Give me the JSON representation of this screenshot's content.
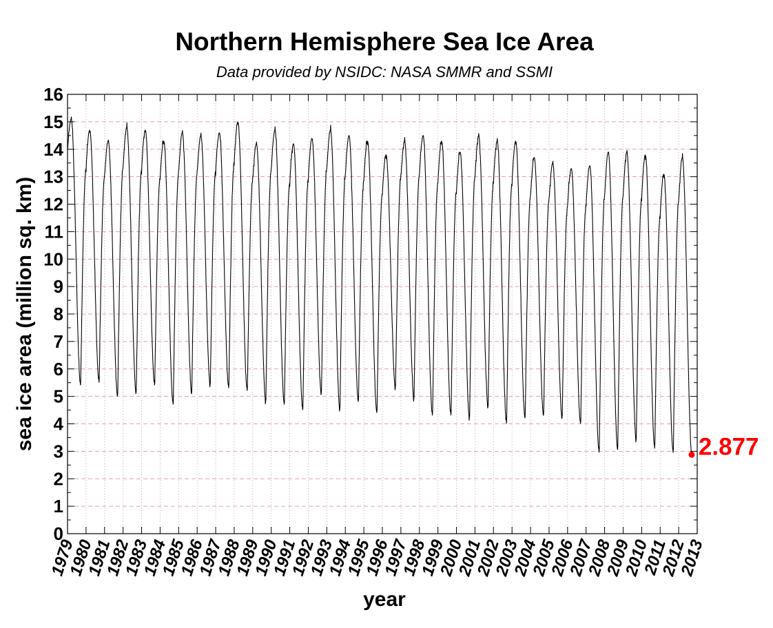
{
  "chart_data": {
    "type": "line",
    "title": "Northern Hemisphere Sea Ice Area",
    "subtitle": "Data provided by NSIDC: NASA SMMR and SSMI",
    "xlabel": "year",
    "ylabel": "sea ice area (million sq. km)",
    "xlim": [
      1979,
      2013
    ],
    "ylim": [
      0,
      16
    ],
    "x_ticks": [
      "1979",
      "1980",
      "1981",
      "1982",
      "1983",
      "1984",
      "1985",
      "1986",
      "1987",
      "1988",
      "1989",
      "1990",
      "1991",
      "1992",
      "1993",
      "1994",
      "1995",
      "1996",
      "1997",
      "1998",
      "1999",
      "2000",
      "2001",
      "2002",
      "2003",
      "2004",
      "2005",
      "2006",
      "2007",
      "2008",
      "2009",
      "2010",
      "2011",
      "2012",
      "2013"
    ],
    "y_ticks": [
      "0",
      "1",
      "2",
      "3",
      "4",
      "5",
      "6",
      "7",
      "8",
      "9",
      "10",
      "11",
      "12",
      "13",
      "14",
      "15",
      "16"
    ],
    "grid": true,
    "grid_color": "#cc8888",
    "line_color": "#000000",
    "annotation_color": "#ff0000",
    "series": [
      {
        "annual_cycles": [
          {
            "year": 1979,
            "max": 15.1,
            "min": 5.4
          },
          {
            "year": 1980,
            "max": 14.7,
            "min": 5.5
          },
          {
            "year": 1981,
            "max": 14.3,
            "min": 5.0
          },
          {
            "year": 1982,
            "max": 14.8,
            "min": 5.1
          },
          {
            "year": 1983,
            "max": 14.7,
            "min": 5.4
          },
          {
            "year": 1984,
            "max": 14.3,
            "min": 4.7
          },
          {
            "year": 1985,
            "max": 14.6,
            "min": 5.1
          },
          {
            "year": 1986,
            "max": 14.5,
            "min": 5.4
          },
          {
            "year": 1987,
            "max": 14.6,
            "min": 5.3
          },
          {
            "year": 1988,
            "max": 15.0,
            "min": 5.2
          },
          {
            "year": 1989,
            "max": 14.2,
            "min": 4.8
          },
          {
            "year": 1990,
            "max": 14.7,
            "min": 4.7
          },
          {
            "year": 1991,
            "max": 14.2,
            "min": 4.5
          },
          {
            "year": 1992,
            "max": 14.4,
            "min": 5.1
          },
          {
            "year": 1993,
            "max": 14.7,
            "min": 4.5
          },
          {
            "year": 1994,
            "max": 14.5,
            "min": 4.8
          },
          {
            "year": 1995,
            "max": 14.3,
            "min": 4.4
          },
          {
            "year": 1996,
            "max": 13.8,
            "min": 5.3
          },
          {
            "year": 1997,
            "max": 14.3,
            "min": 4.9
          },
          {
            "year": 1998,
            "max": 14.5,
            "min": 4.3
          },
          {
            "year": 1999,
            "max": 14.3,
            "min": 4.3
          },
          {
            "year": 2000,
            "max": 13.9,
            "min": 4.2
          },
          {
            "year": 2001,
            "max": 14.5,
            "min": 4.6
          },
          {
            "year": 2002,
            "max": 14.3,
            "min": 4.0
          },
          {
            "year": 2003,
            "max": 14.3,
            "min": 4.2
          },
          {
            "year": 2004,
            "max": 13.7,
            "min": 4.3
          },
          {
            "year": 2005,
            "max": 13.5,
            "min": 4.2
          },
          {
            "year": 2006,
            "max": 13.3,
            "min": 4.0
          },
          {
            "year": 2007,
            "max": 13.4,
            "min": 2.95
          },
          {
            "year": 2008,
            "max": 13.9,
            "min": 3.05
          },
          {
            "year": 2009,
            "max": 13.9,
            "min": 3.4
          },
          {
            "year": 2010,
            "max": 13.8,
            "min": 3.1
          },
          {
            "year": 2011,
            "max": 13.1,
            "min": 2.95
          },
          {
            "year": 2012,
            "max": 13.7,
            "min": 2.877
          }
        ]
      }
    ],
    "last_point": {
      "x": 2012.7,
      "y": 2.877
    },
    "annotations": [
      {
        "text": "2.877"
      }
    ]
  }
}
